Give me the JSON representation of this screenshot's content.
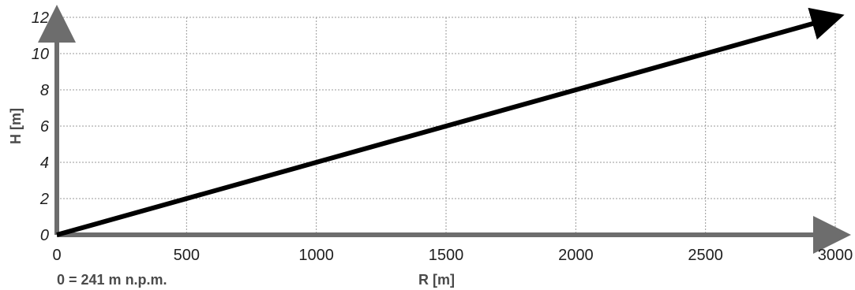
{
  "chart_data": {
    "type": "line",
    "title": "",
    "xlabel": "R [m]",
    "ylabel": "H [m]",
    "xlim": [
      0,
      3000
    ],
    "ylim": [
      0,
      12
    ],
    "x_ticks": [
      "0",
      "500",
      "1000",
      "1500",
      "2000",
      "2500",
      "3000"
    ],
    "y_ticks": [
      "0",
      "2",
      "4",
      "6",
      "8",
      "10",
      "12"
    ],
    "grid": true,
    "series": [
      {
        "x": [
          0,
          3000
        ],
        "values": [
          0,
          12
        ],
        "style": "arrow"
      }
    ],
    "annotations": [
      "0 = 241 m n.p.m."
    ],
    "colors": {
      "axis": "#6d6d6d",
      "series": "#000000",
      "grid": "#9a9a9a",
      "text": "#1f1f1f"
    }
  }
}
